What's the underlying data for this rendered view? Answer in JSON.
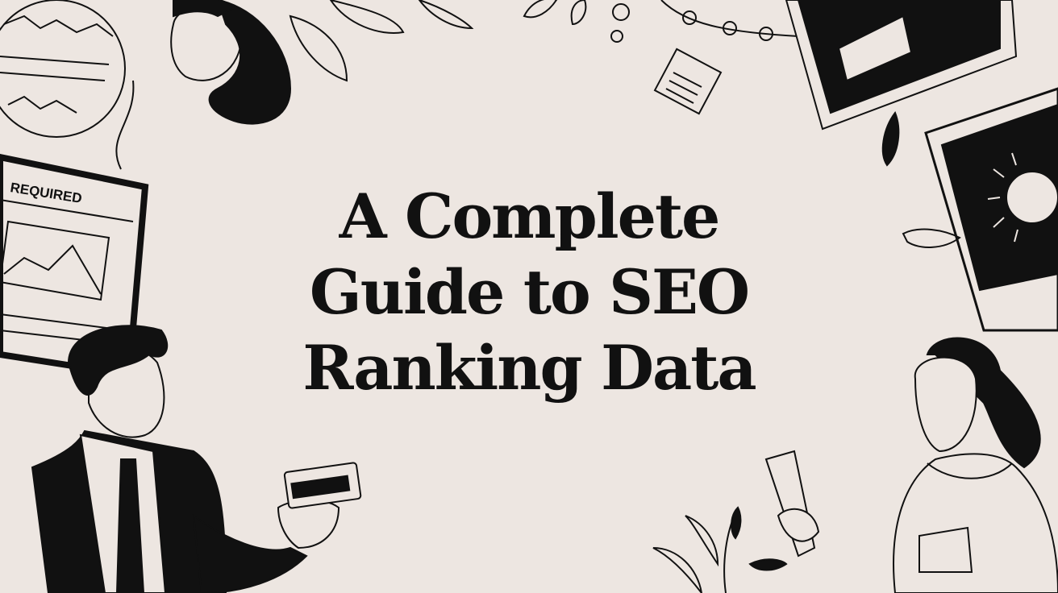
{
  "title": {
    "lines": [
      "A Complete",
      "Guide to SEO",
      "Ranking Data"
    ]
  },
  "illustration": {
    "document_label": "REQUIRED"
  },
  "colors": {
    "background": "#ede6e1",
    "ink": "#111111"
  }
}
